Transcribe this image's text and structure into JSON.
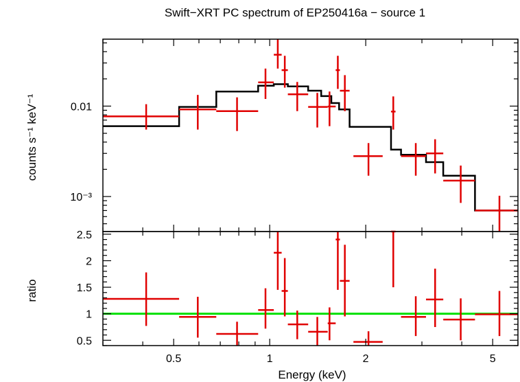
{
  "chart_data": [
    {
      "type": "scatter",
      "title": "Swift−XRT PC spectrum of EP250416a − source 1",
      "ylabel": "counts s⁻¹ keV⁻¹",
      "xlabel": "",
      "xscale": "log",
      "yscale": "log",
      "xlim": [
        0.3,
        6.0
      ],
      "ylim": [
        0.00041,
        0.055
      ],
      "yticks": [
        {
          "value": 0.01,
          "label": "0.01"
        },
        {
          "value": 0.001,
          "label": "10⁻³"
        }
      ],
      "colors": {
        "data": "#e00000",
        "model": "#000000",
        "frame": "#000000"
      },
      "series": [
        {
          "role": "data",
          "points": [
            {
              "xlo": 0.3,
              "xhi": 0.52,
              "x": 0.41,
              "y": 0.0077,
              "ylo": 0.0055,
              "yhi": 0.0105
            },
            {
              "xlo": 0.52,
              "xhi": 0.68,
              "x": 0.595,
              "y": 0.0092,
              "ylo": 0.0055,
              "yhi": 0.0133
            },
            {
              "xlo": 0.68,
              "xhi": 0.92,
              "x": 0.79,
              "y": 0.0088,
              "ylo": 0.0053,
              "yhi": 0.0125
            },
            {
              "xlo": 0.92,
              "xhi": 1.03,
              "x": 0.97,
              "y": 0.0183,
              "ylo": 0.012,
              "yhi": 0.026
            },
            {
              "xlo": 1.03,
              "xhi": 1.09,
              "x": 1.06,
              "y": 0.037,
              "ylo": 0.026,
              "yhi": 0.055
            },
            {
              "xlo": 1.09,
              "xhi": 1.14,
              "x": 1.115,
              "y": 0.025,
              "ylo": 0.016,
              "yhi": 0.036
            },
            {
              "xlo": 1.14,
              "xhi": 1.32,
              "x": 1.22,
              "y": 0.0135,
              "ylo": 0.0088,
              "yhi": 0.0185
            },
            {
              "xlo": 1.32,
              "xhi": 1.52,
              "x": 1.41,
              "y": 0.0098,
              "ylo": 0.0058,
              "yhi": 0.014
            },
            {
              "xlo": 1.52,
              "xhi": 1.61,
              "x": 1.54,
              "y": 0.0099,
              "ylo": 0.006,
              "yhi": 0.0145
            },
            {
              "xlo": 1.61,
              "xhi": 1.66,
              "x": 1.635,
              "y": 0.025,
              "ylo": 0.0155,
              "yhi": 0.036
            },
            {
              "xlo": 1.66,
              "xhi": 1.78,
              "x": 1.72,
              "y": 0.0148,
              "ylo": 0.0088,
              "yhi": 0.022
            },
            {
              "xlo": 1.83,
              "xhi": 2.26,
              "x": 2.04,
              "y": 0.0028,
              "ylo": 0.0017,
              "yhi": 0.0039
            },
            {
              "xlo": 2.4,
              "xhi": 2.48,
              "x": 2.44,
              "y": 0.0087,
              "ylo": 0.0055,
              "yhi": 0.0128
            },
            {
              "xlo": 2.58,
              "xhi": 3.09,
              "x": 2.87,
              "y": 0.0028,
              "ylo": 0.0017,
              "yhi": 0.0039
            },
            {
              "xlo": 3.09,
              "xhi": 3.5,
              "x": 3.3,
              "y": 0.003,
              "ylo": 0.0018,
              "yhi": 0.0043
            },
            {
              "xlo": 3.5,
              "xhi": 4.4,
              "x": 3.97,
              "y": 0.0015,
              "ylo": 0.00085,
              "yhi": 0.0022
            },
            {
              "xlo": 4.4,
              "xhi": 6.0,
              "x": 5.25,
              "y": 0.0007,
              "ylo": 0.00041,
              "yhi": 0.00102
            }
          ]
        },
        {
          "role": "model",
          "steps": [
            {
              "xlo": 0.3,
              "xhi": 0.52,
              "y": 0.006
            },
            {
              "xlo": 0.52,
              "xhi": 0.68,
              "y": 0.0098
            },
            {
              "xlo": 0.68,
              "xhi": 0.92,
              "y": 0.0145
            },
            {
              "xlo": 0.92,
              "xhi": 1.03,
              "y": 0.0168
            },
            {
              "xlo": 1.03,
              "xhi": 1.14,
              "y": 0.0175
            },
            {
              "xlo": 1.14,
              "xhi": 1.32,
              "y": 0.0165
            },
            {
              "xlo": 1.32,
              "xhi": 1.45,
              "y": 0.0148
            },
            {
              "xlo": 1.45,
              "xhi": 1.56,
              "y": 0.0129
            },
            {
              "xlo": 1.56,
              "xhi": 1.65,
              "y": 0.0108
            },
            {
              "xlo": 1.65,
              "xhi": 1.78,
              "y": 0.0092
            },
            {
              "xlo": 1.78,
              "xhi": 2.4,
              "y": 0.0059
            },
            {
              "xlo": 2.4,
              "xhi": 2.58,
              "y": 0.0033
            },
            {
              "xlo": 2.58,
              "xhi": 3.09,
              "y": 0.0029
            },
            {
              "xlo": 3.09,
              "xhi": 3.5,
              "y": 0.0024
            },
            {
              "xlo": 3.5,
              "xhi": 4.4,
              "y": 0.0017
            },
            {
              "xlo": 4.4,
              "xhi": 6.0,
              "y": 0.0007
            }
          ]
        }
      ]
    },
    {
      "type": "scatter",
      "title": "",
      "xlabel": "Energy (keV)",
      "ylabel": "ratio",
      "xscale": "log",
      "yscale": "linear",
      "xlim": [
        0.3,
        6.0
      ],
      "ylim": [
        0.4,
        2.55
      ],
      "xticks": [
        {
          "value": 0.5,
          "label": "0.5"
        },
        {
          "value": 1,
          "label": "1"
        },
        {
          "value": 2,
          "label": "2"
        },
        {
          "value": 5,
          "label": "5"
        }
      ],
      "yticks": [
        {
          "value": 0.5,
          "label": "0.5"
        },
        {
          "value": 1,
          "label": "1"
        },
        {
          "value": 1.5,
          "label": "1.5"
        },
        {
          "value": 2,
          "label": "2"
        },
        {
          "value": 2.5,
          "label": "2.5"
        }
      ],
      "reference_line": 1,
      "colors": {
        "data": "#e00000",
        "reference": "#00e000",
        "frame": "#000000"
      },
      "series": [
        {
          "role": "ratio",
          "points": [
            {
              "xlo": 0.3,
              "xhi": 0.52,
              "x": 0.41,
              "y": 1.28,
              "ylo": 0.77,
              "yhi": 1.78
            },
            {
              "xlo": 0.52,
              "xhi": 0.68,
              "x": 0.595,
              "y": 0.94,
              "ylo": 0.55,
              "yhi": 1.32
            },
            {
              "xlo": 0.68,
              "xhi": 0.92,
              "x": 0.79,
              "y": 0.62,
              "ylo": 0.4,
              "yhi": 0.85
            },
            {
              "xlo": 0.92,
              "xhi": 1.03,
              "x": 0.97,
              "y": 1.07,
              "ylo": 0.72,
              "yhi": 1.48
            },
            {
              "xlo": 1.03,
              "xhi": 1.09,
              "x": 1.06,
              "y": 2.15,
              "ylo": 1.45,
              "yhi": 2.55
            },
            {
              "xlo": 1.09,
              "xhi": 1.14,
              "x": 1.115,
              "y": 1.43,
              "ylo": 0.95,
              "yhi": 2.05
            },
            {
              "xlo": 1.14,
              "xhi": 1.32,
              "x": 1.22,
              "y": 0.8,
              "ylo": 0.52,
              "yhi": 1.06
            },
            {
              "xlo": 1.32,
              "xhi": 1.52,
              "x": 1.41,
              "y": 0.66,
              "ylo": 0.4,
              "yhi": 0.94
            },
            {
              "xlo": 1.52,
              "xhi": 1.61,
              "x": 1.54,
              "y": 0.82,
              "ylo": 0.5,
              "yhi": 1.12
            },
            {
              "xlo": 1.61,
              "xhi": 1.66,
              "x": 1.635,
              "y": 2.4,
              "ylo": 1.45,
              "yhi": 2.55
            },
            {
              "xlo": 1.66,
              "xhi": 1.78,
              "x": 1.72,
              "y": 1.62,
              "ylo": 0.95,
              "yhi": 2.3
            },
            {
              "xlo": 1.83,
              "xhi": 2.26,
              "x": 2.04,
              "y": 0.47,
              "ylo": 0.4,
              "yhi": 0.67
            },
            {
              "xlo": 2.4,
              "xhi": 2.48,
              "x": 2.44,
              "y": 2.55,
              "ylo": 1.5,
              "yhi": 2.55
            },
            {
              "xlo": 2.58,
              "xhi": 3.09,
              "x": 2.87,
              "y": 0.94,
              "ylo": 0.58,
              "yhi": 1.33
            },
            {
              "xlo": 3.09,
              "xhi": 3.5,
              "x": 3.3,
              "y": 1.27,
              "ylo": 0.75,
              "yhi": 1.85
            },
            {
              "xlo": 3.5,
              "xhi": 4.4,
              "x": 3.97,
              "y": 0.89,
              "ylo": 0.5,
              "yhi": 1.29
            },
            {
              "xlo": 4.4,
              "xhi": 6.0,
              "x": 5.25,
              "y": 0.99,
              "ylo": 0.58,
              "yhi": 1.43
            }
          ]
        }
      ]
    }
  ]
}
